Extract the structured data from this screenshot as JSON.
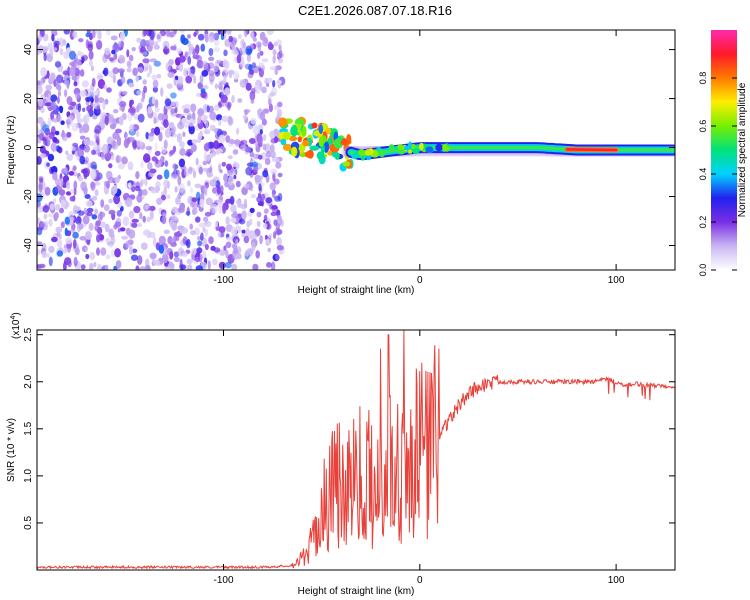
{
  "figure": {
    "title": "C2E1.2026.087.07.18.R16"
  },
  "chart_data": [
    {
      "type": "heatmap",
      "xlabel": "Height of straight line (km)",
      "ylabel": "Frequency (Hz)",
      "xlim": [
        -195,
        130
      ],
      "ylim": [
        -50,
        48
      ],
      "xticks": [
        -100,
        0,
        100
      ],
      "yticks": [
        -40,
        -20,
        0,
        20,
        40
      ],
      "grid": false,
      "colorbar": {
        "label": "Normalized spectral amplitude",
        "range": [
          0,
          1
        ],
        "ticks": [
          0.0,
          0.2,
          0.4,
          0.6,
          0.8
        ],
        "colors": [
          "#ffffff",
          "#c9b6f2",
          "#7a2ee6",
          "#2222ee",
          "#00d2ff",
          "#00e27a",
          "#77ee00",
          "#ffee00",
          "#ff7a00",
          "#ff1a2a",
          "#ff2ab0"
        ]
      },
      "regions": [
        {
          "name": "noise",
          "x_range": [
            -195,
            -70
          ],
          "freq_range": [
            -50,
            48
          ],
          "amplitude": [
            0.0,
            0.35
          ]
        },
        {
          "name": "onset",
          "x_range": [
            -70,
            -35
          ],
          "freq_range": [
            -15,
            12
          ],
          "amplitude": [
            0.3,
            0.9
          ]
        },
        {
          "name": "carrier",
          "x_range": [
            -35,
            130
          ],
          "freq_range": [
            -4,
            4
          ],
          "amplitude": [
            0.2,
            0.7
          ]
        },
        {
          "name": "peak",
          "x_range": [
            75,
            100
          ],
          "freq_range": [
            -1.5,
            1.5
          ],
          "amplitude": [
            0.85,
            1.0
          ]
        }
      ],
      "carrier_frequency": {
        "x": [
          -70,
          -60,
          -50,
          -40,
          -30,
          -20,
          -10,
          0,
          20,
          40,
          60,
          80,
          100,
          130
        ],
        "y": [
          5,
          4,
          2,
          -1,
          -3,
          -2,
          -1,
          0,
          0,
          0,
          0,
          -1,
          -1,
          -1
        ]
      }
    },
    {
      "type": "line",
      "xlabel": "Height of straight line (km)",
      "ylabel": "SNR (10 * v/v)",
      "yscale_label": "(x10",
      "yscale_exp": "4",
      "yscale_close": ")",
      "xlim": [
        -195,
        130
      ],
      "ylim": [
        0,
        2.55
      ],
      "xticks": [
        -100,
        0,
        100
      ],
      "yticks": [
        0.5,
        1.0,
        1.5,
        2.0,
        2.5
      ],
      "grid": false,
      "color": "#e8413a",
      "series": [
        {
          "x": [
            -195,
            -150,
            -100,
            -80,
            -70,
            -65,
            -60,
            -55,
            -50,
            -45,
            -40,
            -35,
            -30,
            -25,
            -20,
            -15,
            -10,
            -5,
            0,
            5,
            10,
            15,
            20,
            25,
            30,
            35,
            40,
            50,
            60,
            70,
            80,
            90,
            95,
            100,
            105,
            110,
            115,
            120,
            125,
            130
          ],
          "y": [
            0.03,
            0.03,
            0.03,
            0.03,
            0.04,
            0.05,
            0.12,
            0.28,
            0.6,
            0.9,
            0.9,
            1.05,
            1.0,
            1.05,
            0.85,
            1.15,
            1.2,
            1.25,
            1.25,
            1.3,
            1.45,
            1.6,
            1.75,
            1.88,
            1.95,
            1.98,
            2.0,
            2.0,
            2.0,
            2.0,
            2.0,
            2.0,
            2.03,
            2.0,
            1.95,
            1.98,
            1.97,
            1.96,
            1.96,
            1.95
          ]
        }
      ],
      "spikes": [
        {
          "x": -20,
          "y": 2.35
        },
        {
          "x": -16,
          "y": 2.5
        },
        {
          "x": -8,
          "y": 2.55
        }
      ]
    }
  ]
}
